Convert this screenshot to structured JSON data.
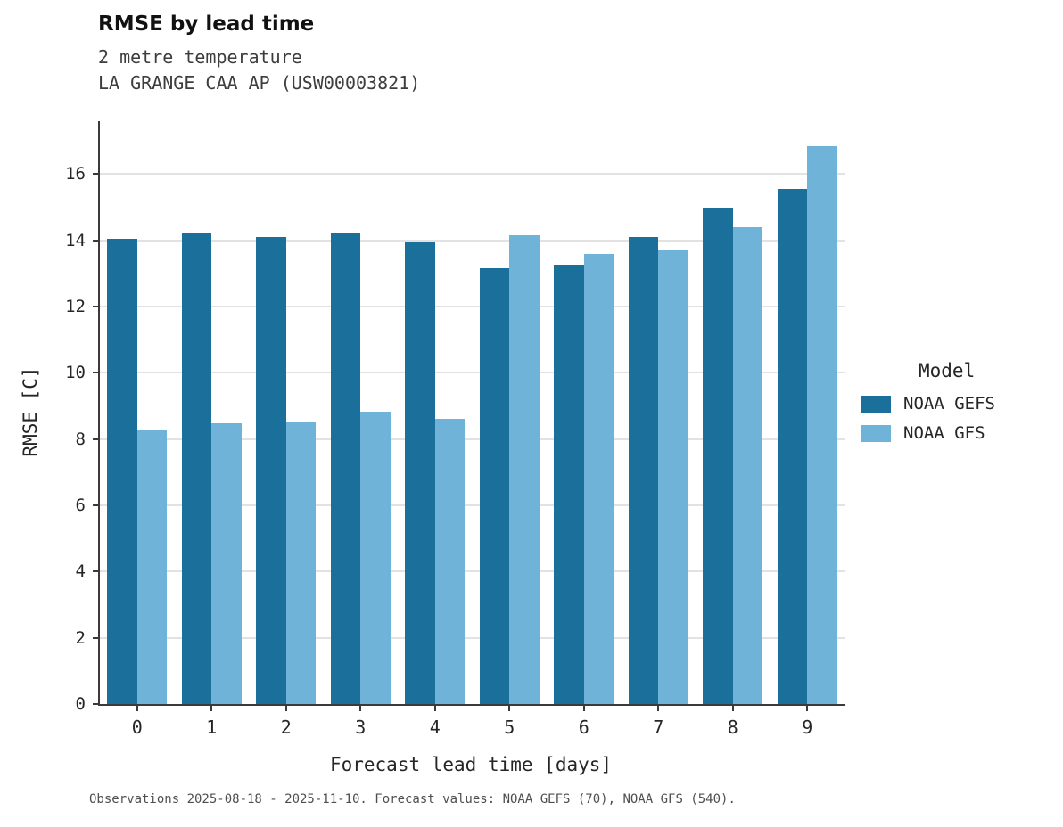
{
  "title": "RMSE by lead time",
  "subtitle_line1": "2 metre temperature",
  "subtitle_line2": "LA GRANGE CAA AP (USW00003821)",
  "footer": "Observations 2025-08-18 - 2025-11-10. Forecast values: NOAA GEFS (70), NOAA GFS (540).",
  "legend": {
    "title": "Model",
    "entries": [
      {
        "label": "NOAA GEFS",
        "color": "#1a6f9b"
      },
      {
        "label": "NOAA GFS",
        "color": "#6fb3d9"
      }
    ]
  },
  "chart_data": {
    "type": "bar",
    "title": "RMSE by lead time",
    "categories": [
      "0",
      "1",
      "2",
      "3",
      "4",
      "5",
      "6",
      "7",
      "8",
      "9"
    ],
    "series": [
      {
        "name": "NOAA GEFS",
        "color": "#1a6f9b",
        "values": [
          14.05,
          14.2,
          14.1,
          14.22,
          13.93,
          13.17,
          13.26,
          14.09,
          15.0,
          15.56
        ]
      },
      {
        "name": "NOAA GFS",
        "color": "#6fb3d9",
        "values": [
          8.3,
          8.48,
          8.53,
          8.84,
          8.62,
          14.15,
          13.6,
          13.71,
          14.39,
          16.86
        ]
      }
    ],
    "xlabel": "Forecast lead time [days]",
    "ylabel": "RMSE [C]",
    "ylim": [
      0,
      17.6
    ],
    "yticks": [
      0,
      2,
      4,
      6,
      8,
      10,
      12,
      14,
      16
    ],
    "grid": true,
    "legend_position": "right"
  }
}
